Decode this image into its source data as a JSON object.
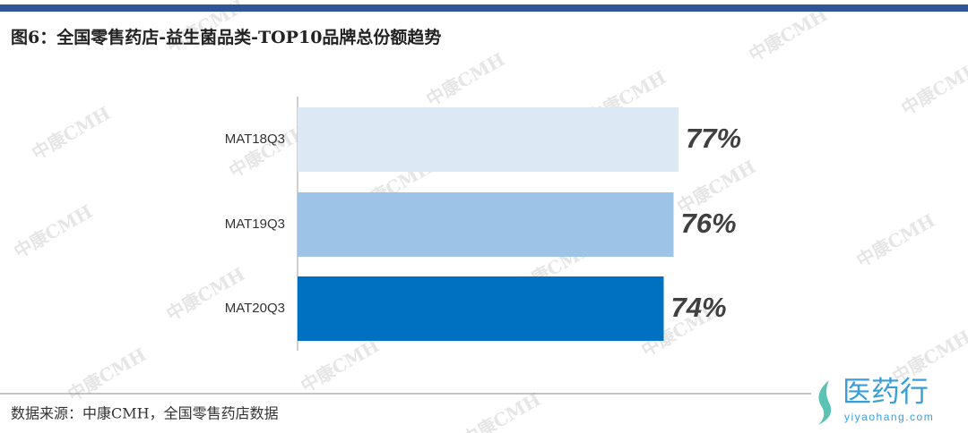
{
  "chart_data": {
    "type": "bar",
    "orientation": "horizontal",
    "title": "图6：全国零售药店-益生菌品类-TOP10品牌总份额趋势",
    "categories": [
      "MAT18Q3",
      "MAT19Q3",
      "MAT20Q3"
    ],
    "values": [
      77,
      76,
      74
    ],
    "value_labels": [
      "77%",
      "76%",
      "74%"
    ],
    "colors": [
      "#dde8f5",
      "#9dc3e6",
      "#0070c0"
    ],
    "xlim": [
      0,
      100
    ],
    "source": "数据来源：中康CMH，全国零售药店数据",
    "watermark": "中康CMH",
    "logo": "医药行",
    "logo_url": "yiyaohang.com"
  }
}
